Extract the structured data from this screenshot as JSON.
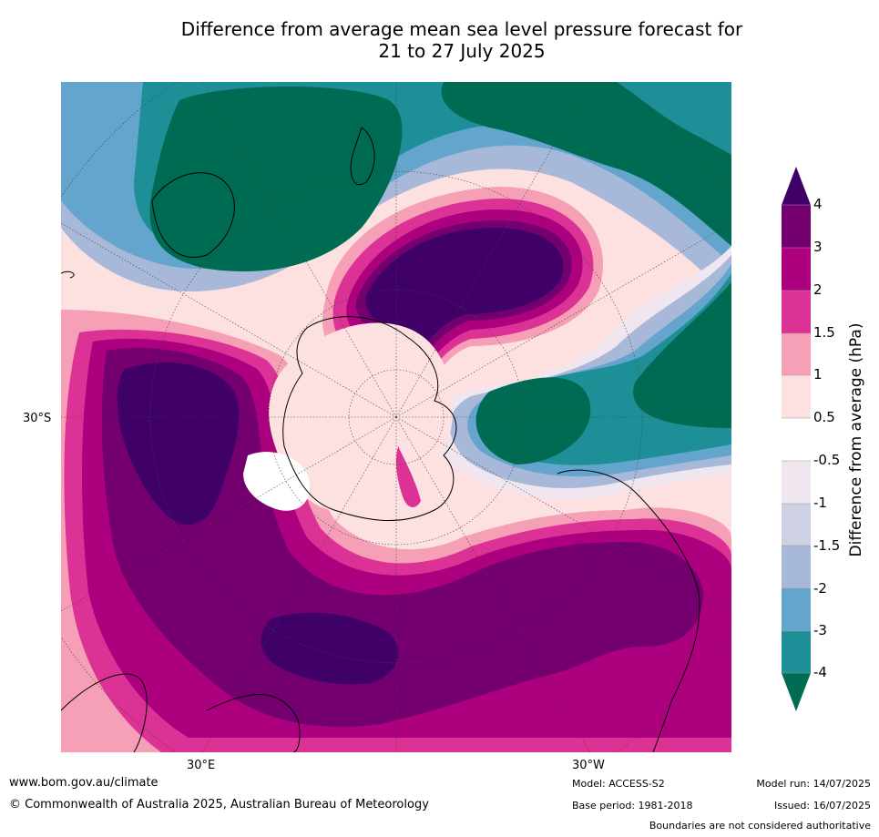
{
  "header": {
    "title_line1": "Difference from average mean sea level pressure forecast for",
    "title_line2": "21 to 27 July 2025"
  },
  "map": {
    "projection": "south-polar-stereographic",
    "lat_label": "30°S",
    "lon_label_left": "30°E",
    "lon_label_right": "30°W"
  },
  "colorbar": {
    "title": "Difference from average (hPa)",
    "ticks": [
      "4",
      "3",
      "2",
      "1.5",
      "1",
      "0.5",
      "-0.5",
      "-1",
      "-1.5",
      "-2",
      "-3",
      "-4"
    ],
    "colors": {
      "over": "#3f0068",
      "c_3_4": "#74006f",
      "c_2_3": "#ad007f",
      "c_15_2": "#dc3296",
      "c_1_15": "#f5a0b7",
      "c_05_1": "#fde0e0",
      "c_m05_05": "#ffffff",
      "c_m1_m05": "#efe6ef",
      "c_m15_m1": "#ced0e4",
      "c_m2_m15": "#a7b8d8",
      "c_m3_m2": "#64a5ce",
      "c_m4_m3": "#1e8f96",
      "under": "#006b53"
    }
  },
  "footer": {
    "url": "www.bom.gov.au/climate",
    "copyright": "© Commonwealth of Australia 2025, Australian Bureau of Meteorology",
    "model": "Model: ACCESS-S2",
    "base_period": "Base period: 1981-2018",
    "model_run": "Model run: 14/07/2025",
    "issued": "Issued: 16/07/2025",
    "disclaimer": "Boundaries are not considered authoritative"
  }
}
